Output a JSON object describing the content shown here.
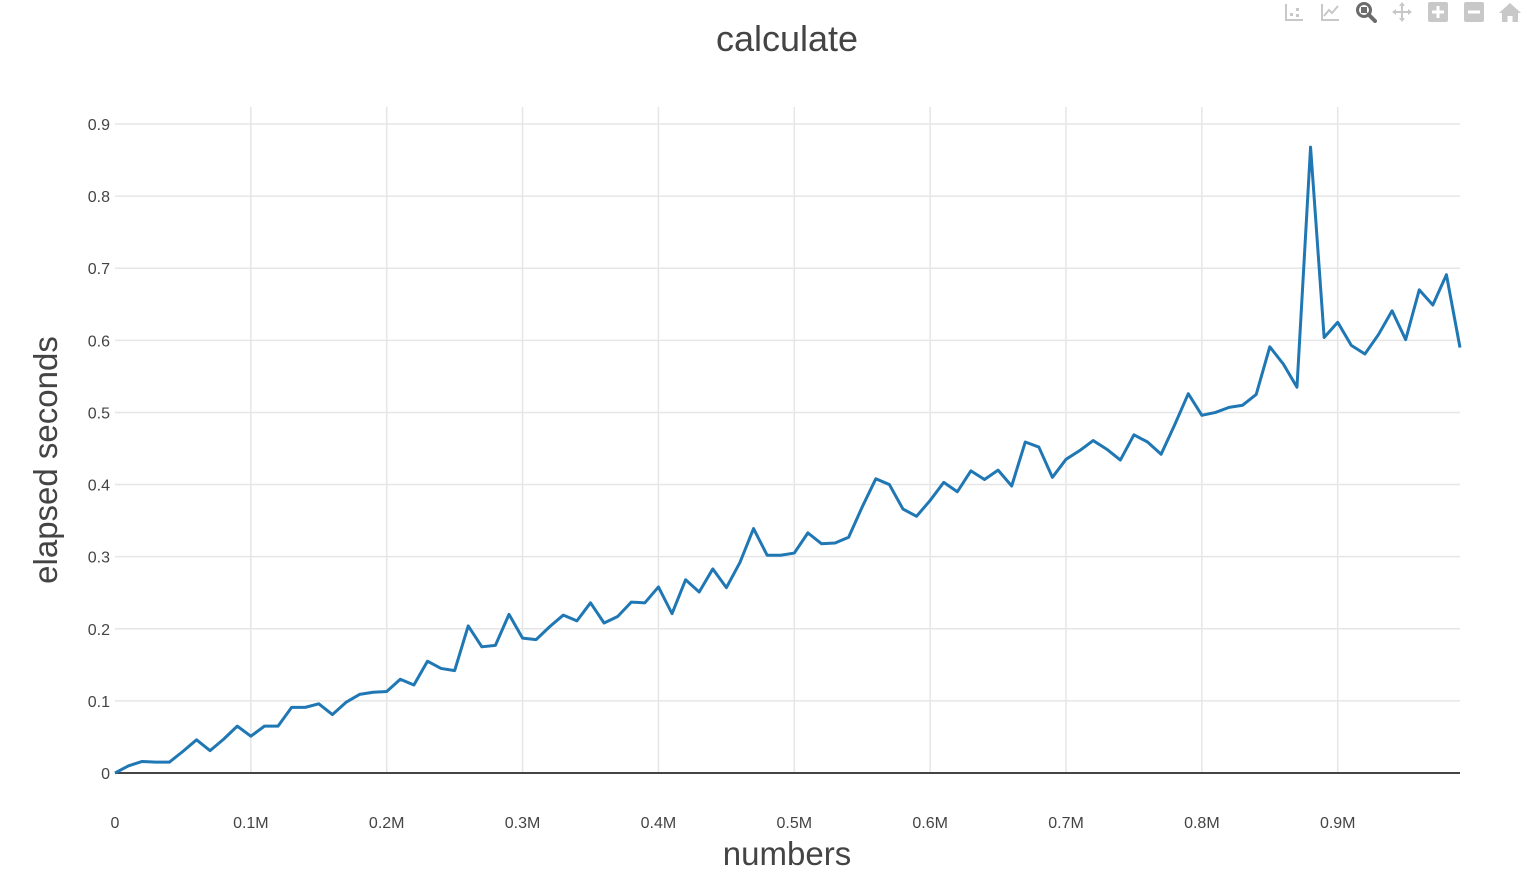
{
  "colors": {
    "line": "#1f77b4",
    "grid": "#e6e6e6",
    "zero_line": "#444444",
    "text": "#444444",
    "modebar_icon": "#c8c8c8",
    "modebar_icon_active": "#6b6b6b"
  },
  "modebar": {
    "buttons": [
      {
        "name": "compare-data-hover-icon",
        "active": false
      },
      {
        "name": "show-closest-hover-icon",
        "active": false
      },
      {
        "name": "zoom-icon",
        "active": true
      },
      {
        "name": "pan-icon",
        "active": false
      },
      {
        "name": "zoom-in-icon",
        "active": false
      },
      {
        "name": "zoom-out-icon",
        "active": false
      },
      {
        "name": "reset-axes-home-icon",
        "active": false
      }
    ]
  },
  "chart_data": {
    "type": "line",
    "title": "calculate",
    "xlabel": "numbers",
    "ylabel": "elapsed seconds",
    "xlim": [
      0,
      990000
    ],
    "ylim": [
      0,
      0.9
    ],
    "grid": true,
    "legend": "none",
    "x_ticks": [
      0,
      100000,
      200000,
      300000,
      400000,
      500000,
      600000,
      700000,
      800000,
      900000
    ],
    "x_tick_labels": [
      "0",
      "0.1M",
      "0.2M",
      "0.3M",
      "0.4M",
      "0.5M",
      "0.6M",
      "0.7M",
      "0.8M",
      "0.9M"
    ],
    "y_ticks": [
      0,
      0.1,
      0.2,
      0.3,
      0.4,
      0.5,
      0.6,
      0.7,
      0.8,
      0.9
    ],
    "y_tick_labels": [
      "0",
      "0.1",
      "0.2",
      "0.3",
      "0.4",
      "0.5",
      "0.6",
      "0.7",
      "0.8",
      "0.9"
    ],
    "series": [
      {
        "x_step": 10000,
        "x_start": 0,
        "values": [
          0.0,
          0.01,
          0.016,
          0.015,
          0.015,
          0.03,
          0.046,
          0.031,
          0.047,
          0.065,
          0.051,
          0.065,
          0.065,
          0.091,
          0.091,
          0.096,
          0.081,
          0.098,
          0.109,
          0.112,
          0.113,
          0.13,
          0.122,
          0.155,
          0.145,
          0.142,
          0.204,
          0.175,
          0.177,
          0.22,
          0.187,
          0.185,
          0.203,
          0.219,
          0.211,
          0.236,
          0.208,
          0.217,
          0.237,
          0.236,
          0.258,
          0.221,
          0.268,
          0.251,
          0.283,
          0.257,
          0.292,
          0.339,
          0.302,
          0.302,
          0.305,
          0.333,
          0.318,
          0.319,
          0.327,
          0.369,
          0.408,
          0.4,
          0.366,
          0.356,
          0.378,
          0.403,
          0.39,
          0.419,
          0.407,
          0.42,
          0.398,
          0.459,
          0.452,
          0.41,
          0.435,
          0.447,
          0.461,
          0.449,
          0.434,
          0.469,
          0.459,
          0.442,
          0.483,
          0.526,
          0.496,
          0.5,
          0.507,
          0.51,
          0.525,
          0.591,
          0.567,
          0.535,
          0.868,
          0.604,
          0.625,
          0.593,
          0.581,
          0.608,
          0.641,
          0.601,
          0.67,
          0.649,
          0.691,
          0.59
        ]
      }
    ]
  }
}
